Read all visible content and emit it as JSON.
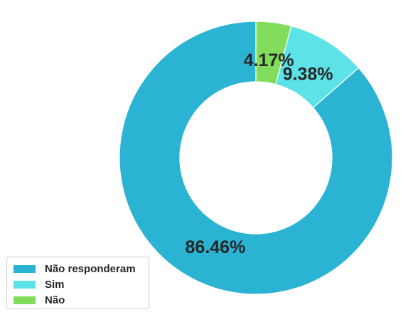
{
  "chart_data": {
    "type": "pie",
    "donut": true,
    "categories": [
      "Não responderam",
      "Sim",
      "Não"
    ],
    "values": [
      86.46,
      9.38,
      4.17
    ],
    "labels": [
      "86.46%",
      "9.38%",
      "4.17%"
    ],
    "colors": [
      "#2bb3d4",
      "#5de2e7",
      "#80dc5a"
    ],
    "legend_position": "lower-left",
    "title": ""
  }
}
